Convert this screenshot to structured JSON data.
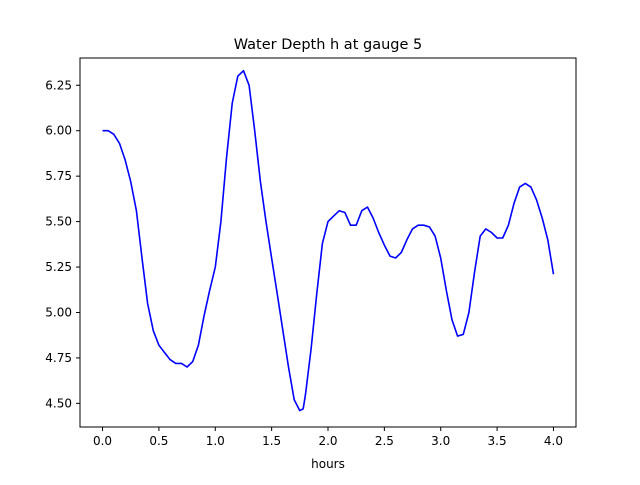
{
  "chart_data": {
    "type": "line",
    "title": "Water Depth h at gauge 5",
    "xlabel": "hours",
    "ylabel": "",
    "xlim": [
      -0.2,
      4.2
    ],
    "ylim": [
      4.37,
      6.4
    ],
    "xticks": [
      0.0,
      0.5,
      1.0,
      1.5,
      2.0,
      2.5,
      3.0,
      3.5,
      4.0
    ],
    "xtick_labels": [
      "0.0",
      "0.5",
      "1.0",
      "1.5",
      "2.0",
      "2.5",
      "3.0",
      "3.5",
      "4.0"
    ],
    "yticks": [
      4.5,
      4.75,
      5.0,
      5.25,
      5.5,
      5.75,
      6.0,
      6.25
    ],
    "ytick_labels": [
      "4.50",
      "4.75",
      "5.00",
      "5.25",
      "5.50",
      "5.75",
      "6.00",
      "6.25"
    ],
    "grid": false,
    "series": [
      {
        "color": "#0000ff",
        "x": [
          0.0,
          0.05,
          0.1,
          0.15,
          0.2,
          0.25,
          0.3,
          0.35,
          0.4,
          0.45,
          0.5,
          0.55,
          0.6,
          0.65,
          0.7,
          0.75,
          0.8,
          0.85,
          0.9,
          0.95,
          1.0,
          1.05,
          1.1,
          1.15,
          1.2,
          1.25,
          1.3,
          1.35,
          1.4,
          1.45,
          1.5,
          1.55,
          1.6,
          1.65,
          1.7,
          1.75,
          1.78,
          1.8,
          1.85,
          1.9,
          1.95,
          2.0,
          2.05,
          2.1,
          2.15,
          2.2,
          2.25,
          2.3,
          2.35,
          2.4,
          2.45,
          2.5,
          2.55,
          2.6,
          2.65,
          2.7,
          2.75,
          2.8,
          2.85,
          2.9,
          2.95,
          3.0,
          3.05,
          3.1,
          3.15,
          3.2,
          3.25,
          3.3,
          3.35,
          3.4,
          3.45,
          3.5,
          3.55,
          3.6,
          3.65,
          3.7,
          3.75,
          3.8,
          3.85,
          3.9,
          3.95,
          4.0
        ],
        "y": [
          6.0,
          6.0,
          5.98,
          5.93,
          5.84,
          5.72,
          5.56,
          5.3,
          5.05,
          4.9,
          4.82,
          4.78,
          4.74,
          4.72,
          4.72,
          4.7,
          4.73,
          4.82,
          4.98,
          5.12,
          5.25,
          5.5,
          5.85,
          6.15,
          6.3,
          6.33,
          6.25,
          6.0,
          5.72,
          5.5,
          5.3,
          5.1,
          4.9,
          4.7,
          4.52,
          4.46,
          4.47,
          4.55,
          4.8,
          5.1,
          5.38,
          5.5,
          5.53,
          5.56,
          5.55,
          5.48,
          5.48,
          5.56,
          5.58,
          5.52,
          5.44,
          5.37,
          5.31,
          5.3,
          5.33,
          5.4,
          5.46,
          5.48,
          5.48,
          5.47,
          5.42,
          5.3,
          5.12,
          4.96,
          4.87,
          4.88,
          5.0,
          5.22,
          5.42,
          5.46,
          5.44,
          5.41,
          5.41,
          5.48,
          5.6,
          5.69,
          5.71,
          5.69,
          5.62,
          5.52,
          5.4,
          5.21
        ]
      }
    ]
  }
}
